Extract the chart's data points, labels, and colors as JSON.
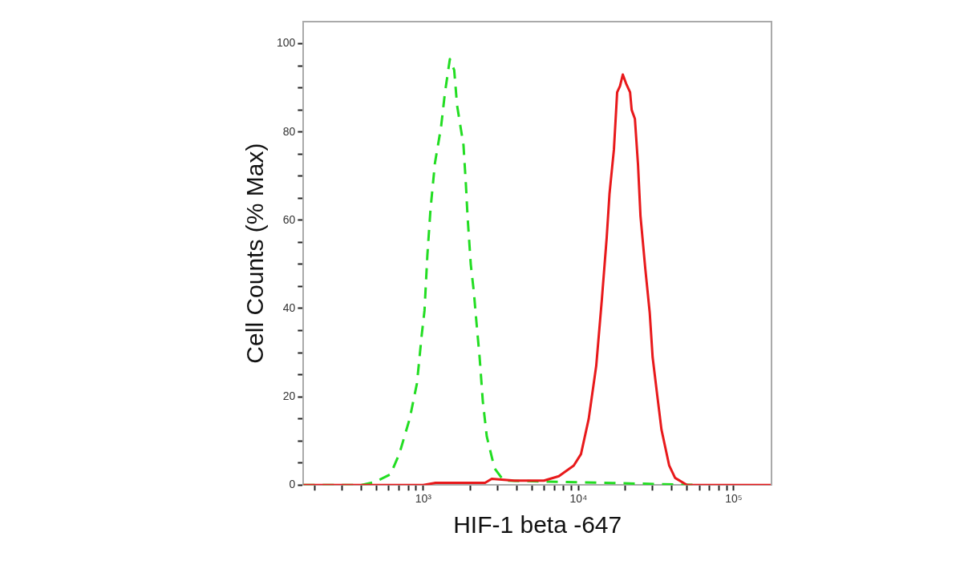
{
  "chart_data": {
    "type": "line",
    "xlabel": "HIF-1 beta -647",
    "ylabel": "Cell Counts (% Max)",
    "log": "x",
    "grid": false,
    "legend": false,
    "marker": "none",
    "xlim": [
      169,
      175000
    ],
    "ylim": [
      0,
      105
    ],
    "xticks": [
      {
        "value": 200,
        "label": null
      },
      {
        "value": 300,
        "label": null
      },
      {
        "value": 400,
        "label": null
      },
      {
        "value": 500,
        "label": null
      },
      {
        "value": 600,
        "label": null
      },
      {
        "value": 700,
        "label": null
      },
      {
        "value": 800,
        "label": null
      },
      {
        "value": 900,
        "label": null
      },
      {
        "value": 1000,
        "label": "10³"
      },
      {
        "value": 2000,
        "label": null
      },
      {
        "value": 3000,
        "label": null
      },
      {
        "value": 4000,
        "label": null
      },
      {
        "value": 5000,
        "label": null
      },
      {
        "value": 6000,
        "label": null
      },
      {
        "value": 7000,
        "label": null
      },
      {
        "value": 8000,
        "label": null
      },
      {
        "value": 9000,
        "label": null
      },
      {
        "value": 10000,
        "label": "10⁴"
      },
      {
        "value": 20000,
        "label": null
      },
      {
        "value": 30000,
        "label": null
      },
      {
        "value": 40000,
        "label": null
      },
      {
        "value": 50000,
        "label": null
      },
      {
        "value": 60000,
        "label": null
      },
      {
        "value": 70000,
        "label": null
      },
      {
        "value": 80000,
        "label": null
      },
      {
        "value": 90000,
        "label": null
      },
      {
        "value": 100000,
        "label": "10⁵"
      }
    ],
    "yticks": [
      0,
      {
        "value": 5,
        "label": null
      },
      {
        "value": 10,
        "label": null
      },
      {
        "value": 15,
        "label": null
      },
      20,
      {
        "value": 25,
        "label": null
      },
      {
        "value": 30,
        "label": null
      },
      {
        "value": 35,
        "label": null
      },
      40,
      {
        "value": 45,
        "label": null
      },
      {
        "value": 50,
        "label": null
      },
      {
        "value": 55,
        "label": null
      },
      60,
      {
        "value": 65,
        "label": null
      },
      {
        "value": 70,
        "label": null
      },
      {
        "value": 75,
        "label": null
      },
      80,
      {
        "value": 85,
        "label": null
      },
      {
        "value": 90,
        "label": null
      },
      {
        "value": 95,
        "label": null
      },
      100
    ],
    "series": [
      {
        "color": "#e8191b",
        "line_style": "solid",
        "x": [
          169,
          1000,
          1200,
          2500,
          2760,
          3848,
          5986,
          7464,
          9311,
          10370,
          11630,
          13000,
          14130,
          15180,
          15830,
          16900,
          17730,
          18500,
          19280,
          20230,
          21480,
          21990,
          23070,
          24170,
          25060,
          26920,
          28750,
          30000,
          32220,
          34200,
          38370,
          41880,
          50000,
          175000
        ],
        "values": [
          0,
          0,
          0.5,
          0.5,
          1.4,
          1,
          1,
          2,
          4.4,
          7,
          15,
          27,
          42,
          56,
          66,
          76,
          89,
          90.4,
          93,
          91,
          89,
          85,
          83,
          72.5,
          61,
          49,
          39,
          29,
          20,
          12.6,
          4.4,
          1.6,
          0,
          0
        ]
      },
      {
        "color": "#22dd22",
        "line_style": "dashed",
        "x": [
          169,
          400,
          489,
          614,
          700,
          817,
          910,
          977,
          1018,
          1062,
          1113,
          1189,
          1300,
          1380,
          1483,
          1582,
          1651,
          1815,
          1882,
          1927,
          2022,
          2120,
          2198,
          2305,
          2417,
          2564,
          2876,
          3296,
          60000
        ],
        "values": [
          0,
          0,
          0.7,
          2.4,
          7,
          15,
          23,
          34,
          39.5,
          52,
          62.5,
          73,
          81,
          89,
          96.5,
          94,
          86,
          77,
          68,
          61,
          50,
          43.5,
          37,
          29,
          19,
          11,
          3.8,
          1,
          0
        ]
      }
    ]
  }
}
